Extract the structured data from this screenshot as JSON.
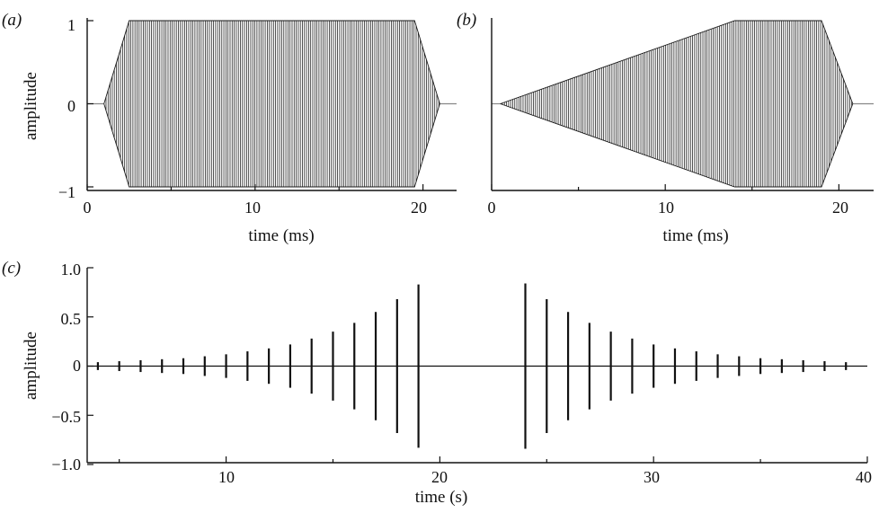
{
  "chart_data": [
    {
      "panel": "(a)",
      "type": "line",
      "xlabel": "time (ms)",
      "ylabel": "amplitude",
      "xlim": [
        0,
        22
      ],
      "ylim": [
        -1,
        1
      ],
      "xticks": [
        0,
        10,
        20
      ],
      "yticks": [
        -1,
        0,
        1
      ],
      "xtick_labels": [
        "0",
        "10",
        "20"
      ],
      "ytick_labels": [
        "−1",
        "0",
        "1"
      ],
      "envelope": {
        "x": [
          0,
          1,
          2.5,
          19.5,
          21,
          22
        ],
        "amplitude": [
          0,
          0,
          1,
          1,
          0,
          0
        ]
      }
    },
    {
      "panel": "(b)",
      "type": "line",
      "xlabel": "time (ms)",
      "ylabel": "",
      "xlim": [
        0,
        22
      ],
      "ylim": [
        -1,
        1
      ],
      "xticks": [
        0,
        10,
        20
      ],
      "xtick_labels": [
        "0",
        "10",
        "20"
      ],
      "envelope": {
        "x": [
          0,
          0.5,
          14,
          19,
          20.8,
          22
        ],
        "amplitude": [
          0,
          0,
          1,
          1,
          0,
          0
        ]
      }
    },
    {
      "panel": "(c)",
      "type": "line",
      "xlabel": "time (s)",
      "ylabel": "amplitude",
      "xlim": [
        3.5,
        40
      ],
      "ylim": [
        -1,
        1
      ],
      "xticks": [
        10,
        20,
        30,
        40
      ],
      "yticks": [
        -1,
        -0.5,
        0,
        0.5,
        1
      ],
      "xtick_labels": [
        "10",
        "20",
        "30",
        "40"
      ],
      "ytick_labels": [
        "−1.0",
        "−0.5",
        "0",
        "0.5",
        "1.0"
      ],
      "pulses": {
        "time": [
          4,
          5,
          6,
          7,
          8,
          9,
          10,
          11,
          12,
          13,
          14,
          15,
          16,
          17,
          18,
          19,
          24,
          25,
          26,
          27,
          28,
          29,
          30,
          31,
          32,
          33,
          34,
          35,
          36,
          37,
          38,
          39
        ],
        "amplitude": [
          0.04,
          0.05,
          0.06,
          0.07,
          0.08,
          0.1,
          0.12,
          0.15,
          0.18,
          0.22,
          0.28,
          0.35,
          0.44,
          0.55,
          0.68,
          0.83,
          0.84,
          0.68,
          0.55,
          0.44,
          0.35,
          0.28,
          0.22,
          0.18,
          0.15,
          0.12,
          0.1,
          0.08,
          0.07,
          0.06,
          0.05,
          0.04
        ]
      }
    }
  ]
}
